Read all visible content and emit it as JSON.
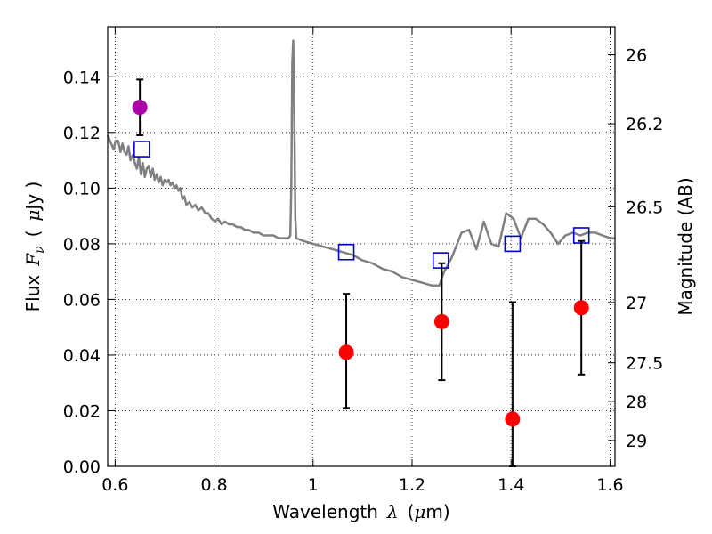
{
  "chart_data": {
    "type": "scatter",
    "title": "",
    "xlabel": {
      "prefix": "Wavelength",
      "symbol": "λ",
      "unit_open": "(",
      "unit_mu": "μ",
      "unit_rest": "m)"
    },
    "ylabel": {
      "prefix": "Flux",
      "symbol": "F",
      "subscript": "ν",
      "unit_open": "(",
      "unit_mu": "μ",
      "unit_rest": "Jy )"
    },
    "y2label": "Magnitude (AB)",
    "xlim": [
      0.585,
      1.61
    ],
    "ylim": [
      0.0,
      0.158
    ],
    "grid": true,
    "x_ticks": [
      {
        "value": 0.6,
        "label": "0.6"
      },
      {
        "value": 0.8,
        "label": "0.8"
      },
      {
        "value": 1.0,
        "label": "1"
      },
      {
        "value": 1.2,
        "label": "1.2"
      },
      {
        "value": 1.4,
        "label": "1.4"
      },
      {
        "value": 1.6,
        "label": "1.6"
      }
    ],
    "y_ticks": [
      {
        "value": 0.0,
        "label": "0.00"
      },
      {
        "value": 0.02,
        "label": "0.02"
      },
      {
        "value": 0.04,
        "label": "0.04"
      },
      {
        "value": 0.06,
        "label": "0.06"
      },
      {
        "value": 0.08,
        "label": "0.08"
      },
      {
        "value": 0.1,
        "label": "0.10"
      },
      {
        "value": 0.12,
        "label": "0.12"
      },
      {
        "value": 0.14,
        "label": "0.14"
      }
    ],
    "y2_ticks": [
      {
        "label": "26",
        "flux": 0.1479
      },
      {
        "label": "26.2",
        "flux": 0.1231
      },
      {
        "label": "26.5",
        "flux": 0.0933
      },
      {
        "label": "27",
        "flux": 0.0589
      },
      {
        "label": "27.5",
        "flux": 0.0372
      },
      {
        "label": "28",
        "flux": 0.0234
      },
      {
        "label": "29",
        "flux": 0.0093
      }
    ],
    "series": [
      {
        "kind": "line",
        "color": "#808080",
        "points": [
          [
            0.585,
            0.119
          ],
          [
            0.592,
            0.116
          ],
          [
            0.597,
            0.114
          ],
          [
            0.601,
            0.117
          ],
          [
            0.606,
            0.117
          ],
          [
            0.611,
            0.113
          ],
          [
            0.615,
            0.116
          ],
          [
            0.619,
            0.113
          ],
          [
            0.623,
            0.112
          ],
          [
            0.627,
            0.115
          ],
          [
            0.631,
            0.11
          ],
          [
            0.636,
            0.112
          ],
          [
            0.64,
            0.109
          ],
          [
            0.644,
            0.107
          ],
          [
            0.648,
            0.111
          ],
          [
            0.652,
            0.105
          ],
          [
            0.656,
            0.109
          ],
          [
            0.66,
            0.104
          ],
          [
            0.664,
            0.107
          ],
          [
            0.668,
            0.108
          ],
          [
            0.672,
            0.104
          ],
          [
            0.676,
            0.107
          ],
          [
            0.68,
            0.103
          ],
          [
            0.684,
            0.105
          ],
          [
            0.688,
            0.102
          ],
          [
            0.692,
            0.104
          ],
          [
            0.696,
            0.101
          ],
          [
            0.7,
            0.103
          ],
          [
            0.704,
            0.102
          ],
          [
            0.708,
            0.103
          ],
          [
            0.712,
            0.101
          ],
          [
            0.716,
            0.102
          ],
          [
            0.72,
            0.1
          ],
          [
            0.724,
            0.101
          ],
          [
            0.728,
            0.099
          ],
          [
            0.732,
            0.1
          ],
          [
            0.736,
            0.096
          ],
          [
            0.74,
            0.097
          ],
          [
            0.744,
            0.094
          ],
          [
            0.75,
            0.095
          ],
          [
            0.756,
            0.093
          ],
          [
            0.762,
            0.094
          ],
          [
            0.768,
            0.092
          ],
          [
            0.775,
            0.093
          ],
          [
            0.782,
            0.091
          ],
          [
            0.788,
            0.091
          ],
          [
            0.795,
            0.089
          ],
          [
            0.802,
            0.088
          ],
          [
            0.808,
            0.089
          ],
          [
            0.815,
            0.087
          ],
          [
            0.822,
            0.088
          ],
          [
            0.83,
            0.087
          ],
          [
            0.838,
            0.087
          ],
          [
            0.846,
            0.086
          ],
          [
            0.854,
            0.086
          ],
          [
            0.862,
            0.085
          ],
          [
            0.87,
            0.085
          ],
          [
            0.88,
            0.084
          ],
          [
            0.89,
            0.084
          ],
          [
            0.9,
            0.083
          ],
          [
            0.91,
            0.083
          ],
          [
            0.92,
            0.083
          ],
          [
            0.93,
            0.082
          ],
          [
            0.94,
            0.082
          ],
          [
            0.95,
            0.082
          ],
          [
            0.954,
            0.083
          ],
          [
            0.956,
            0.1
          ],
          [
            0.958,
            0.145
          ],
          [
            0.96,
            0.153
          ],
          [
            0.962,
            0.13
          ],
          [
            0.964,
            0.09
          ],
          [
            0.966,
            0.082
          ],
          [
            0.98,
            0.081
          ],
          [
            1.0,
            0.08
          ],
          [
            1.02,
            0.079
          ],
          [
            1.04,
            0.078
          ],
          [
            1.06,
            0.077
          ],
          [
            1.08,
            0.076
          ],
          [
            1.1,
            0.074
          ],
          [
            1.12,
            0.073
          ],
          [
            1.14,
            0.071
          ],
          [
            1.16,
            0.07
          ],
          [
            1.18,
            0.068
          ],
          [
            1.2,
            0.067
          ],
          [
            1.22,
            0.066
          ],
          [
            1.24,
            0.065
          ],
          [
            1.255,
            0.065
          ],
          [
            1.265,
            0.07
          ],
          [
            1.28,
            0.075
          ],
          [
            1.3,
            0.084
          ],
          [
            1.315,
            0.085
          ],
          [
            1.33,
            0.078
          ],
          [
            1.345,
            0.088
          ],
          [
            1.36,
            0.08
          ],
          [
            1.375,
            0.079
          ],
          [
            1.39,
            0.091
          ],
          [
            1.405,
            0.089
          ],
          [
            1.42,
            0.082
          ],
          [
            1.435,
            0.089
          ],
          [
            1.45,
            0.089
          ],
          [
            1.465,
            0.087
          ],
          [
            1.48,
            0.084
          ],
          [
            1.495,
            0.08
          ],
          [
            1.51,
            0.083
          ],
          [
            1.525,
            0.084
          ],
          [
            1.54,
            0.083
          ],
          [
            1.555,
            0.084
          ],
          [
            1.57,
            0.084
          ],
          [
            1.585,
            0.083
          ],
          [
            1.6,
            0.082
          ],
          [
            1.61,
            0.082
          ]
        ]
      },
      {
        "kind": "squares",
        "color": "#0000cc",
        "points": [
          [
            0.654,
            0.114
          ],
          [
            1.067,
            0.077
          ],
          [
            1.258,
            0.074
          ],
          [
            1.403,
            0.08
          ],
          [
            1.542,
            0.083
          ]
        ]
      },
      {
        "kind": "errorbar-points",
        "color": "#ff0000",
        "points": [
          {
            "x": 1.067,
            "y": 0.041,
            "lo": 0.021,
            "hi": 0.062
          },
          {
            "x": 1.26,
            "y": 0.052,
            "lo": 0.031,
            "hi": 0.073
          },
          {
            "x": 1.403,
            "y": 0.017,
            "lo": 0.0,
            "hi": 0.059
          },
          {
            "x": 1.542,
            "y": 0.057,
            "lo": 0.033,
            "hi": 0.081
          }
        ]
      },
      {
        "kind": "errorbar-points",
        "color": "#aa00aa",
        "points": [
          {
            "x": 0.65,
            "y": 0.129,
            "lo": 0.119,
            "hi": 0.139
          }
        ]
      }
    ]
  }
}
